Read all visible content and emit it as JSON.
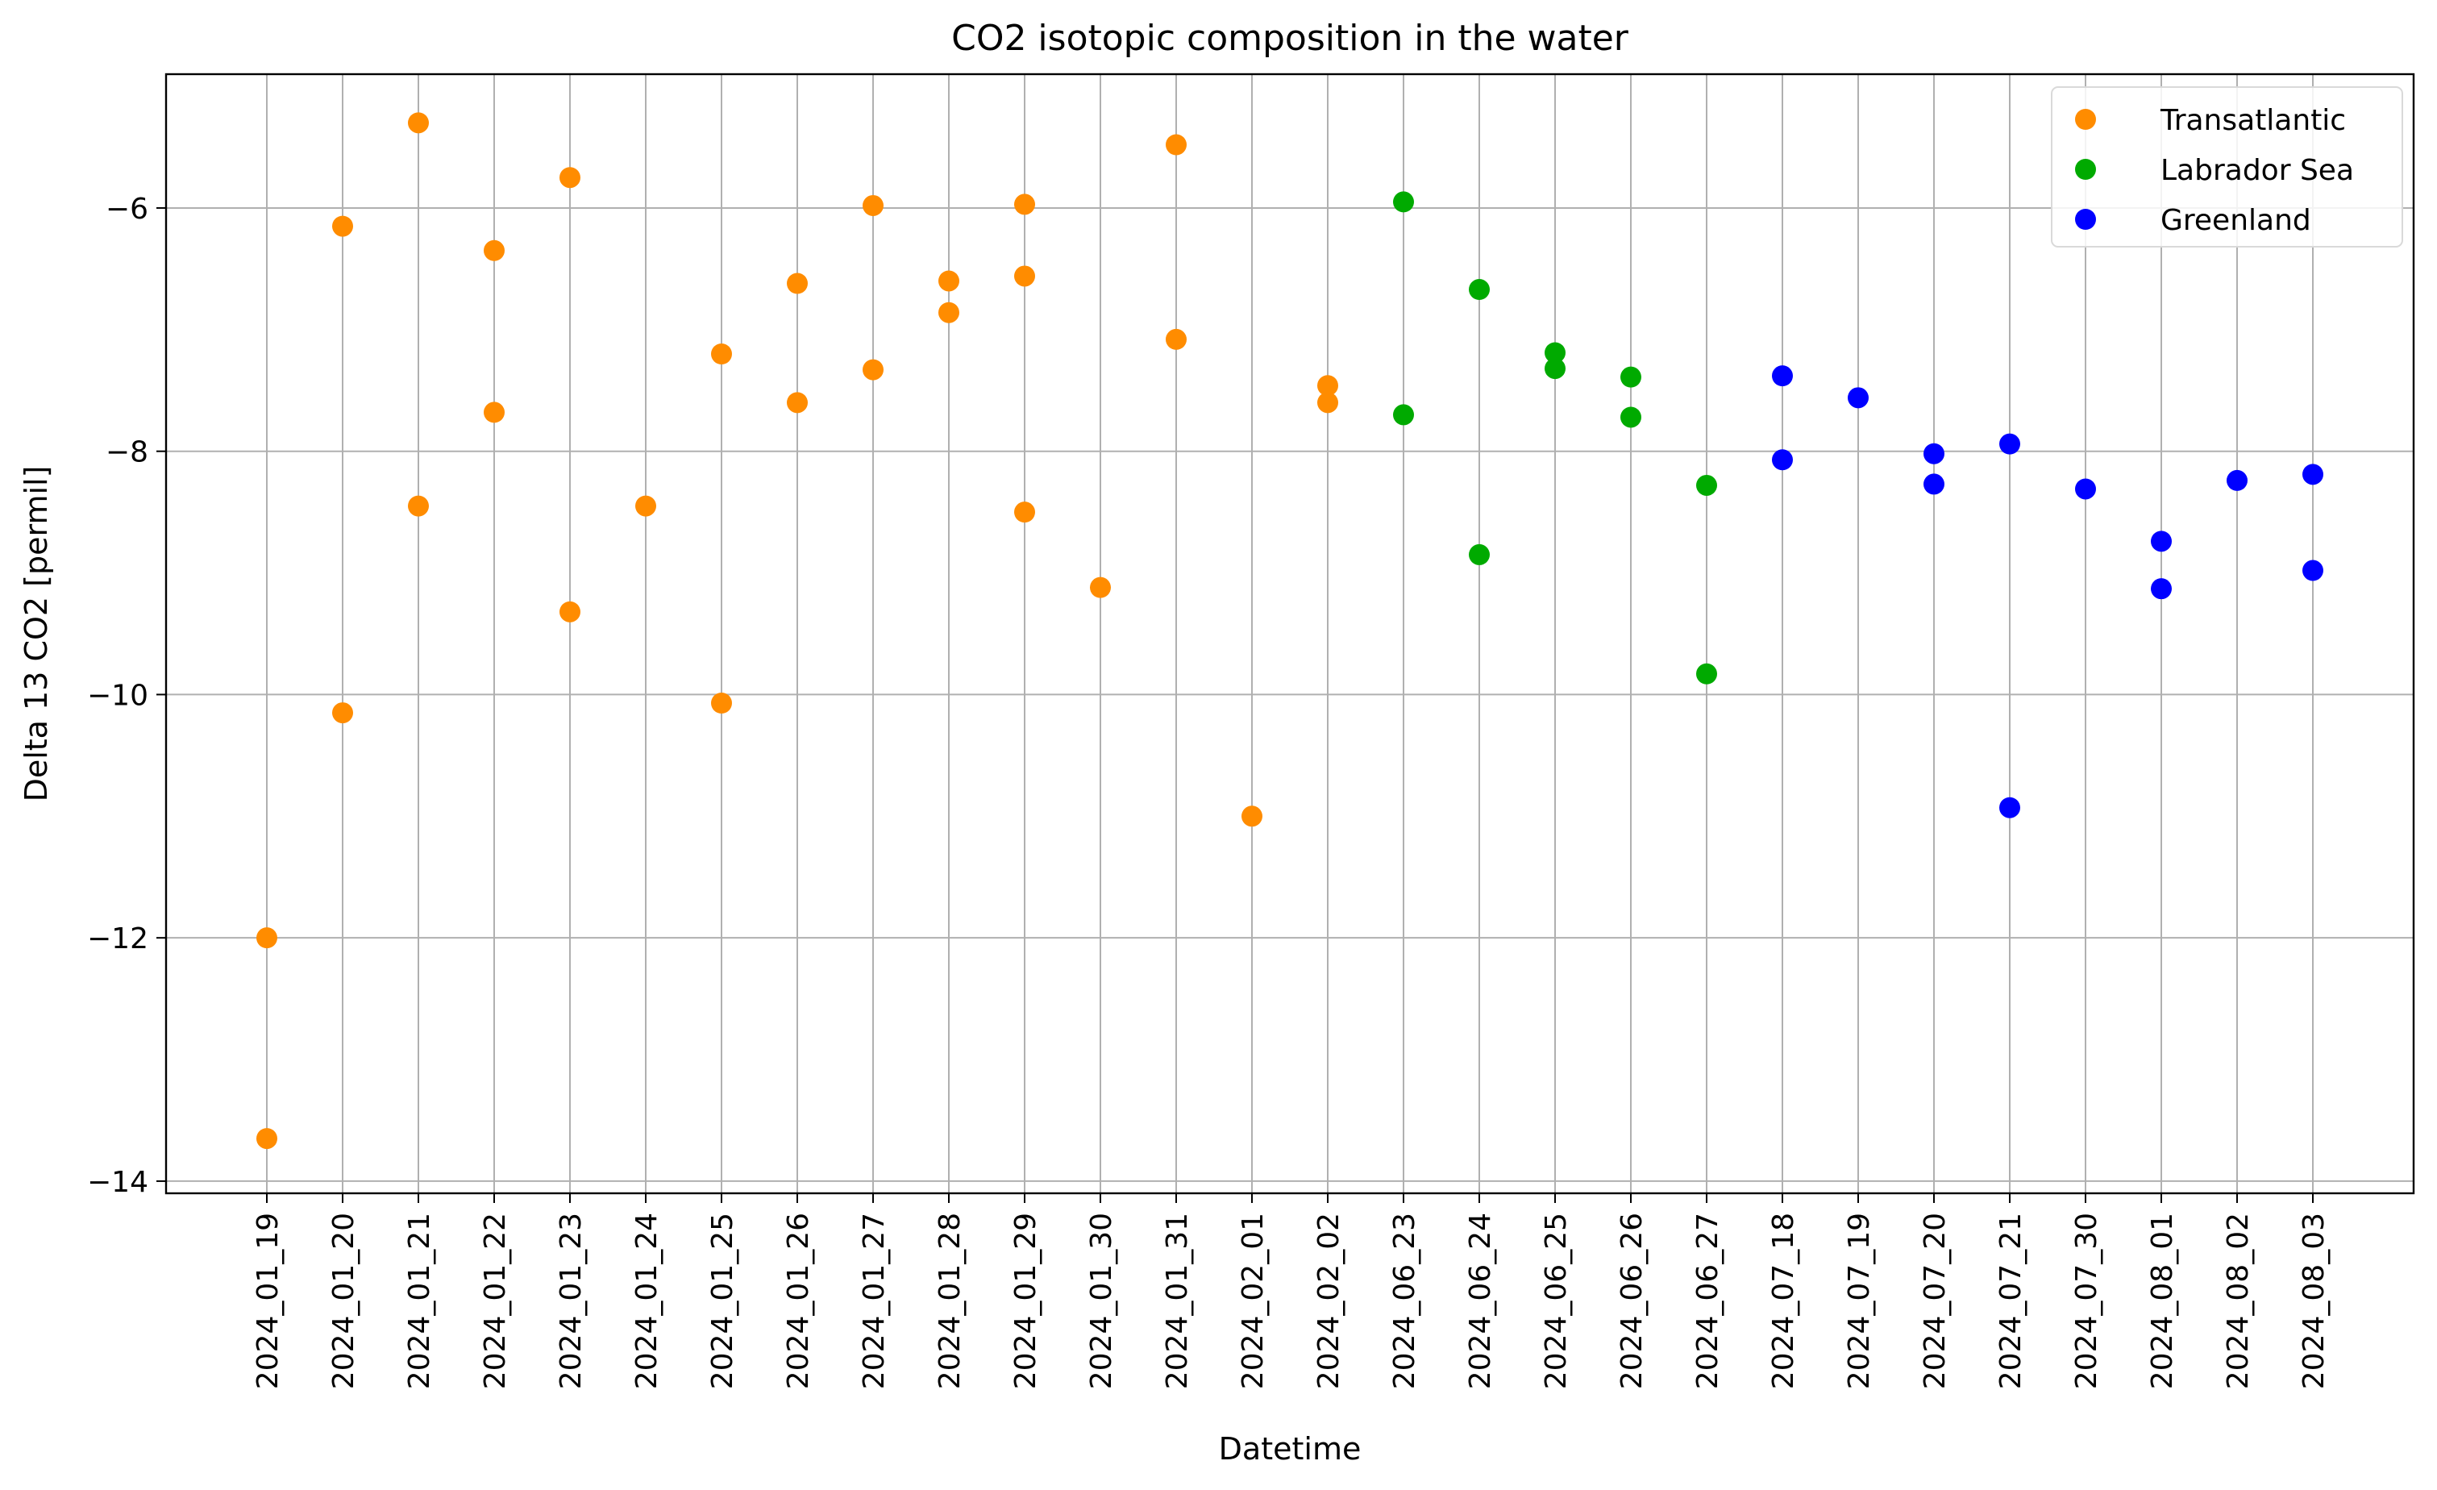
{
  "chart_data": {
    "type": "scatter",
    "title": "CO2 isotopic composition in the water",
    "xlabel": "Datetime",
    "ylabel": "Delta 13 CO2 [permil]",
    "ylim": [
      -14.1,
      -4.9
    ],
    "yticks": [
      -14,
      -12,
      -10,
      -8,
      -6
    ],
    "ytick_labels": [
      "−14",
      "−12",
      "−10",
      "−8",
      "−6"
    ],
    "grid": true,
    "legend_position": "top-right",
    "categories": [
      "2024_01_19",
      "2024_01_20",
      "2024_01_21",
      "2024_01_22",
      "2024_01_23",
      "2024_01_24",
      "2024_01_25",
      "2024_01_26",
      "2024_01_27",
      "2024_01_28",
      "2024_01_29",
      "2024_01_30",
      "2024_01_31",
      "2024_02_01",
      "2024_02_02",
      "2024_06_23",
      "2024_06_24",
      "2024_06_25",
      "2024_06_26",
      "2024_06_27",
      "2024_07_18",
      "2024_07_19",
      "2024_07_20",
      "2024_07_21",
      "2024_07_30",
      "2024_08_01",
      "2024_08_02",
      "2024_08_03"
    ],
    "series": [
      {
        "name": "Transatlantic",
        "color": "#ff8c00",
        "points": [
          [
            "2024_01_19",
            -12.0
          ],
          [
            "2024_01_19",
            -13.65
          ],
          [
            "2024_01_20",
            -6.15
          ],
          [
            "2024_01_20",
            -10.15
          ],
          [
            "2024_01_21",
            -5.3
          ],
          [
            "2024_01_21",
            -8.45
          ],
          [
            "2024_01_22",
            -6.35
          ],
          [
            "2024_01_22",
            -7.68
          ],
          [
            "2024_01_23",
            -5.75
          ],
          [
            "2024_01_23",
            -9.32
          ],
          [
            "2024_01_24",
            -8.45
          ],
          [
            "2024_01_25",
            -7.2
          ],
          [
            "2024_01_25",
            -10.07
          ],
          [
            "2024_01_26",
            -6.62
          ],
          [
            "2024_01_26",
            -7.6
          ],
          [
            "2024_01_27",
            -5.98
          ],
          [
            "2024_01_27",
            -7.33
          ],
          [
            "2024_01_28",
            -6.6
          ],
          [
            "2024_01_28",
            -6.86
          ],
          [
            "2024_01_29",
            -5.97
          ],
          [
            "2024_01_29",
            -6.56
          ],
          [
            "2024_01_29",
            -8.5
          ],
          [
            "2024_01_30",
            -9.12
          ],
          [
            "2024_01_31",
            -5.48
          ],
          [
            "2024_01_31",
            -7.08
          ],
          [
            "2024_02_01",
            -11.0
          ],
          [
            "2024_02_02",
            -7.46
          ],
          [
            "2024_02_02",
            -7.6
          ]
        ]
      },
      {
        "name": "Labrador Sea",
        "color": "#00aa00",
        "points": [
          [
            "2024_06_23",
            -5.95
          ],
          [
            "2024_06_23",
            -7.7
          ],
          [
            "2024_06_24",
            -6.67
          ],
          [
            "2024_06_24",
            -8.85
          ],
          [
            "2024_06_25",
            -7.19
          ],
          [
            "2024_06_25",
            -7.32
          ],
          [
            "2024_06_26",
            -7.39
          ],
          [
            "2024_06_26",
            -7.72
          ],
          [
            "2024_06_27",
            -8.28
          ],
          [
            "2024_06_27",
            -9.83
          ]
        ]
      },
      {
        "name": "Greenland",
        "color": "#0000ff",
        "points": [
          [
            "2024_07_18",
            -7.38
          ],
          [
            "2024_07_18",
            -8.07
          ],
          [
            "2024_07_19",
            -7.56
          ],
          [
            "2024_07_20",
            -8.02
          ],
          [
            "2024_07_20",
            -8.27
          ],
          [
            "2024_07_21",
            -7.94
          ],
          [
            "2024_07_21",
            -10.93
          ],
          [
            "2024_07_30",
            -8.31
          ],
          [
            "2024_08_01",
            -8.74
          ],
          [
            "2024_08_01",
            -9.13
          ],
          [
            "2024_08_02",
            -8.24
          ],
          [
            "2024_08_03",
            -8.19
          ],
          [
            "2024_08_03",
            -8.98
          ]
        ]
      }
    ]
  }
}
